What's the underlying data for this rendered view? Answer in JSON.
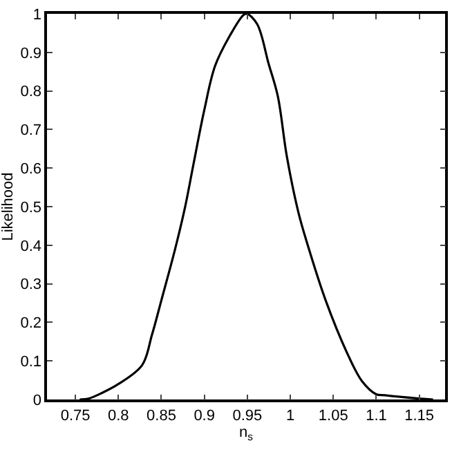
{
  "chart_data": {
    "type": "line",
    "xlabel": "n$_{s}$",
    "ylabel": "Likelihood",
    "x": [
      0.755,
      0.765,
      0.781,
      0.8,
      0.8276,
      0.839,
      0.85,
      0.866,
      0.8775,
      0.887,
      0.9,
      0.9125,
      0.9296,
      0.9455,
      0.9497,
      0.9615,
      0.9747,
      0.9854,
      0.9959,
      1.0093,
      1.02,
      1.0411,
      1.0676,
      1.0835,
      1.0995,
      1.11,
      1.147,
      1.166
    ],
    "series": [
      {
        "color": "#000000",
        "values": [
          0,
          0.002,
          0.017,
          0.04,
          0.089,
          0.167,
          0.257,
          0.39,
          0.498,
          0.606,
          0.751,
          0.865,
          0.943,
          0.997,
          1.0,
          0.973,
          0.871,
          0.787,
          0.631,
          0.486,
          0.402,
          0.257,
          0.113,
          0.047,
          0.014,
          0.011,
          0.003,
          0
        ]
      }
    ],
    "xlim": [
      0.717,
      1.18
    ],
    "ylim": [
      0,
      1
    ],
    "xticks": [
      0.75,
      0.8,
      0.85,
      0.9,
      0.95,
      1,
      1.05,
      1.1,
      1.15
    ],
    "yticks": [
      0,
      0.1,
      0.2,
      0.3,
      0.4,
      0.5,
      0.6,
      0.7,
      0.8,
      0.9,
      1
    ],
    "grid": false,
    "marker": "none",
    "line_style": "solid"
  }
}
